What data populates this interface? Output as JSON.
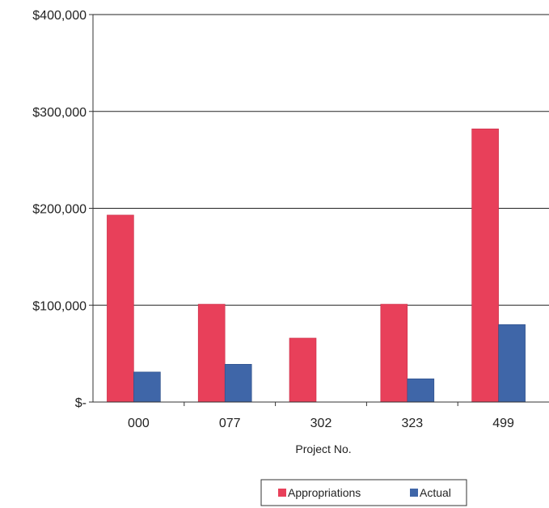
{
  "chart_data": {
    "type": "bar",
    "categories": [
      "000",
      "077",
      "302",
      "323",
      "499"
    ],
    "series": [
      {
        "name": "Appropriations",
        "values": [
          193000,
          101000,
          66000,
          101000,
          282000
        ],
        "color": "#e8405a"
      },
      {
        "name": "Actual",
        "values": [
          31000,
          39000,
          0,
          24000,
          80000
        ],
        "color": "#3f66a8"
      }
    ],
    "xlabel": "Project No.",
    "ylabel": "",
    "ylim": [
      0,
      400000
    ],
    "yticks": [
      0,
      100000,
      200000,
      300000,
      400000
    ],
    "ytick_labels": [
      "$-",
      "$100,000",
      "$200,000",
      "$300,000",
      "$400,000"
    ],
    "grid": true,
    "legend_position": "bottom-right"
  }
}
